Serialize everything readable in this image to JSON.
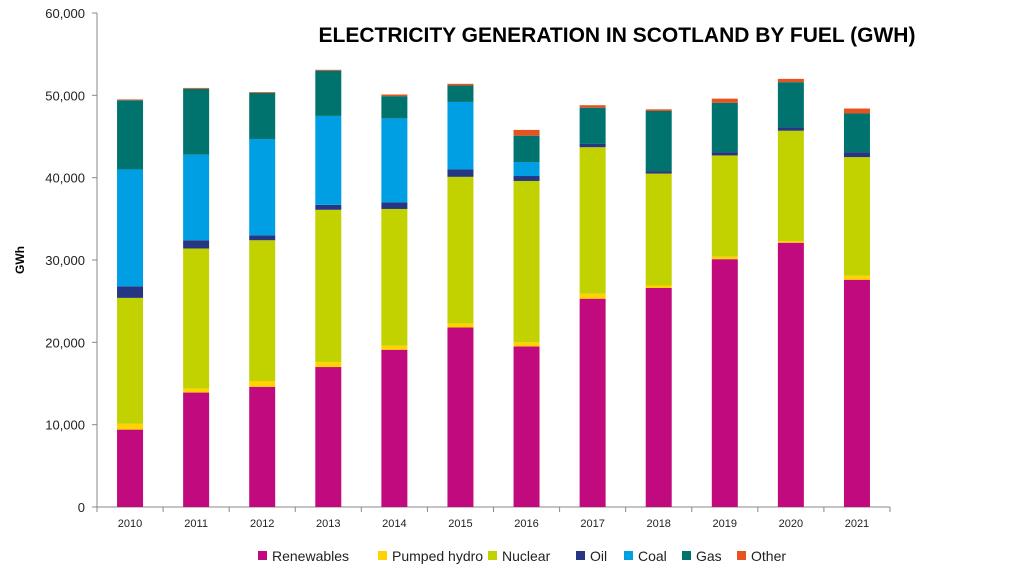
{
  "chart_data": {
    "type": "bar",
    "stacked": true,
    "title": "ELECTRICITY GENERATION IN SCOTLAND BY FUEL (GWH)",
    "xlabel": "",
    "ylabel": "GWh",
    "ylim": [
      0,
      60000
    ],
    "yticks": [
      0,
      10000,
      20000,
      30000,
      40000,
      50000,
      60000
    ],
    "ytick_labels": [
      "0",
      "10,000",
      "20,000",
      "30,000",
      "40,000",
      "50,000",
      "60,000"
    ],
    "grid": false,
    "legend_position": "bottom",
    "categories": [
      "2010",
      "2011",
      "2012",
      "2013",
      "2014",
      "2015",
      "2016",
      "2017",
      "2018",
      "2019",
      "2020",
      "2021"
    ],
    "series": [
      {
        "name": "Renewables",
        "color": "#C00A7D",
        "values": [
          9400,
          13900,
          14600,
          17000,
          19100,
          21800,
          19500,
          25300,
          26600,
          30100,
          32100,
          27600
        ]
      },
      {
        "name": "Pumped hydro",
        "color": "#FFD200",
        "values": [
          700,
          500,
          700,
          600,
          500,
          500,
          500,
          600,
          300,
          300,
          200,
          500
        ]
      },
      {
        "name": "Nuclear",
        "color": "#C2D100",
        "values": [
          15300,
          17000,
          17100,
          18500,
          16600,
          17800,
          19600,
          17800,
          13600,
          12300,
          13400,
          14400
        ]
      },
      {
        "name": "Oil",
        "color": "#253683",
        "values": [
          1400,
          1000,
          600,
          600,
          800,
          900,
          600,
          400,
          300,
          400,
          400,
          600
        ]
      },
      {
        "name": "Coal",
        "color": "#009FE3",
        "values": [
          14200,
          10400,
          11700,
          10800,
          10200,
          8200,
          1700,
          0,
          0,
          0,
          0,
          0
        ]
      },
      {
        "name": "Gas",
        "color": "#00736E",
        "values": [
          8400,
          8000,
          5600,
          5500,
          2700,
          2000,
          3200,
          4400,
          7300,
          6000,
          5500,
          4700
        ]
      },
      {
        "name": "Other",
        "color": "#E5531F",
        "values": [
          100,
          100,
          100,
          100,
          200,
          200,
          700,
          300,
          200,
          500,
          400,
          600
        ]
      }
    ]
  }
}
